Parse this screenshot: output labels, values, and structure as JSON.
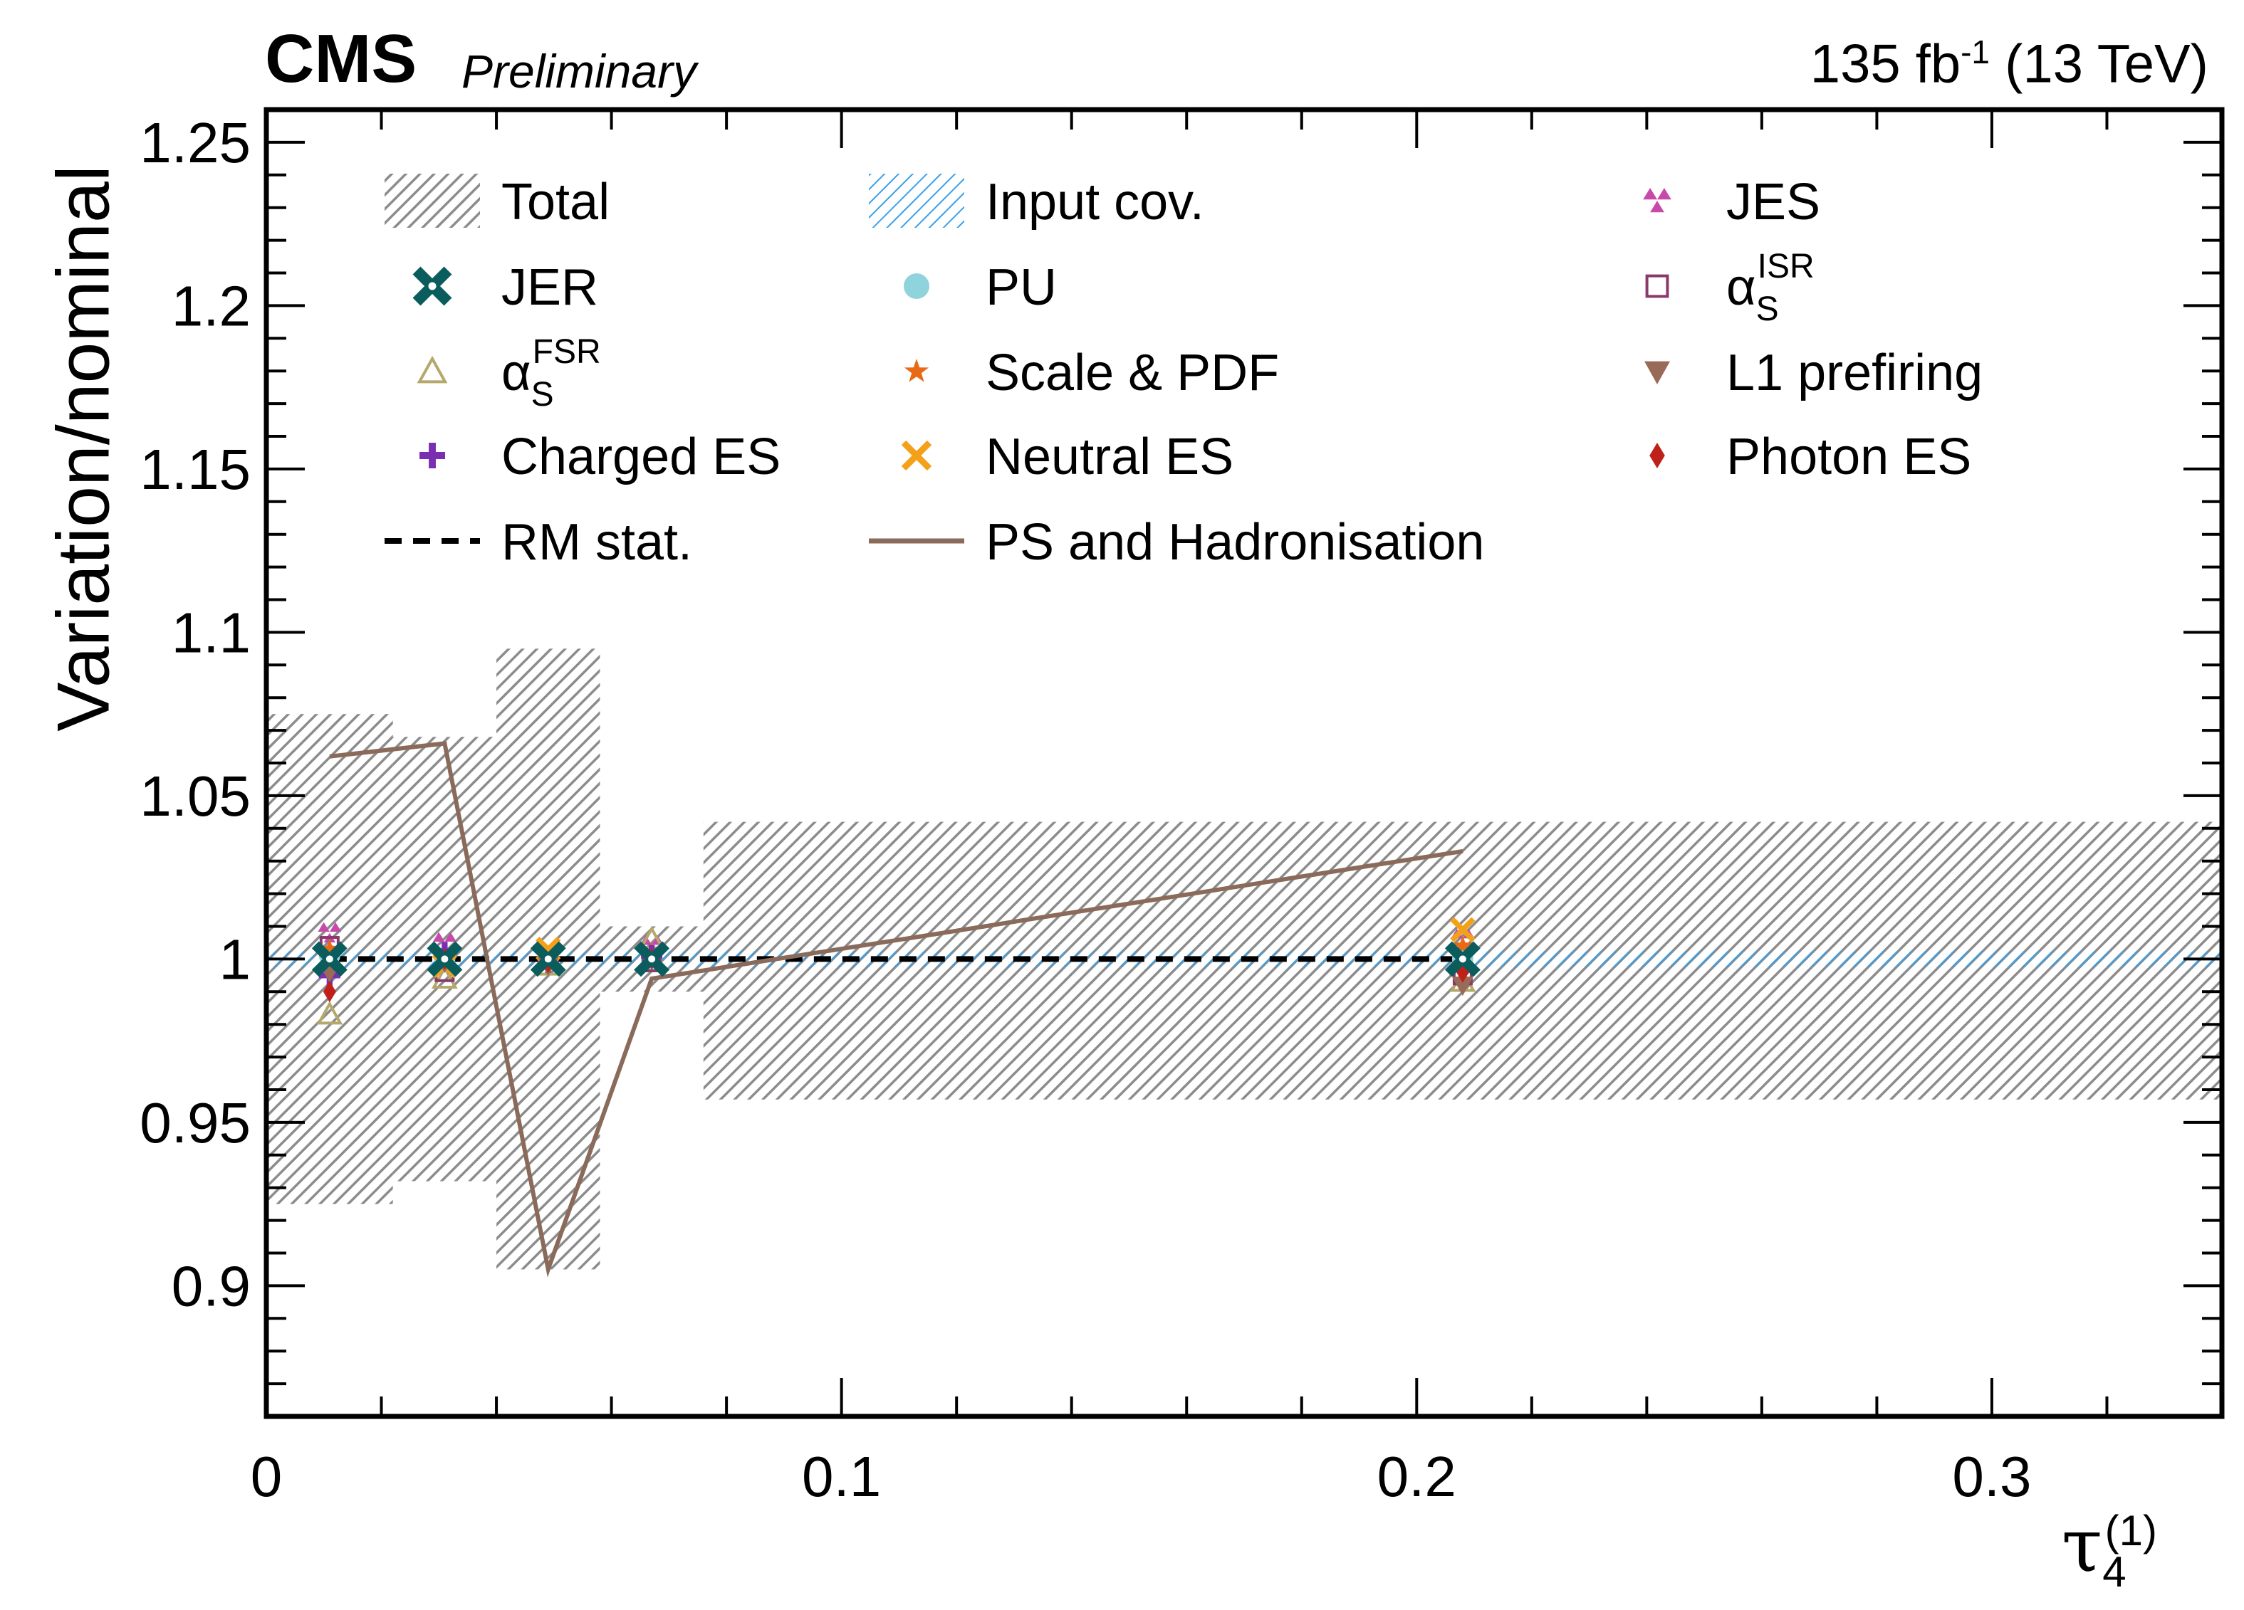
{
  "header": {
    "experiment": "CMS",
    "status": "Preliminary",
    "lumi": "135 fb",
    "lumi_exp": "-1",
    "energy": "(13 TeV)"
  },
  "colors": {
    "total": "#888888",
    "input_cov": "#3aa0e8",
    "jer": "#0b5d5d",
    "pu": "#8fd3dc",
    "jes": "#c84aa8",
    "alpha_fsr": "#b4a86a",
    "scale_pdf": "#e86a16",
    "alpha_isr": "#8a3a6a",
    "charged_es": "#7a2fb0",
    "neutral_es": "#f4a11a",
    "l1_prefiring": "#9a6a58",
    "photon_es": "#c0201a",
    "rm_stat": "#000000",
    "ps_hadronisation": "#8a6a5a"
  },
  "chart_data": {
    "type": "line",
    "xlabel": "τ",
    "xlabel_sub": "4",
    "xlabel_sup": "(1)",
    "ylabel": "Variation/nominal",
    "xlim": [
      0,
      0.34
    ],
    "ylim": [
      0.86,
      1.26
    ],
    "x_ticks": [
      0,
      0.1,
      0.2,
      0.3
    ],
    "x_tick_labels": [
      "0",
      "0.1",
      "0.2",
      "0.3"
    ],
    "y_ticks": [
      0.9,
      0.95,
      1,
      1.05,
      1.1,
      1.15,
      1.2,
      1.25
    ],
    "y_tick_labels": [
      "0.9",
      "0.95",
      "1",
      "1.05",
      "1.1",
      "1.15",
      "1.2",
      "1.25"
    ],
    "bin_edges": [
      0,
      0.022,
      0.04,
      0.058,
      0.076,
      0.34
    ],
    "bin_centers": [
      0.011,
      0.031,
      0.049,
      0.067,
      0.208
    ],
    "total_band": {
      "low": [
        0.925,
        0.932,
        0.905,
        0.99,
        0.957
      ],
      "high": [
        1.075,
        1.068,
        1.095,
        1.01,
        1.042
      ]
    },
    "input_cov_band": {
      "low": [
        0.998,
        0.998,
        0.998,
        0.998,
        0.998
      ],
      "high": [
        1.002,
        1.002,
        1.002,
        1.002,
        1.002
      ]
    },
    "rm_stat": [
      1.0,
      1.0,
      1.0,
      1.0,
      1.0
    ],
    "ps_hadronisation": [
      1.062,
      1.066,
      0.905,
      0.994,
      1.033
    ],
    "markers": [
      {
        "key": "jer",
        "values": [
          1.0,
          1.0,
          1.0,
          1.0,
          1.0
        ]
      },
      {
        "key": "pu",
        "values": [
          1.001,
          1.0,
          1.0,
          1.0,
          1.0
        ]
      },
      {
        "key": "jes",
        "values": [
          1.008,
          1.005,
          1.002,
          1.004,
          1.006
        ]
      },
      {
        "key": "alpha_fsr",
        "values": [
          0.983,
          0.994,
          0.998,
          1.006,
          0.993
        ]
      },
      {
        "key": "scale_pdf",
        "values": [
          1.003,
          1.002,
          1.001,
          1.002,
          1.004
        ]
      },
      {
        "key": "alpha_isr",
        "values": [
          1.004,
          0.996,
          1.0,
          0.999,
          0.995
        ]
      },
      {
        "key": "charged_es",
        "values": [
          0.995,
          1.002,
          0.999,
          1.001,
          0.997
        ]
      },
      {
        "key": "neutral_es",
        "values": [
          1.0,
          0.998,
          1.003,
          1.0,
          1.009
        ]
      },
      {
        "key": "l1_prefiring",
        "values": [
          0.996,
          0.999,
          0.998,
          1.0,
          0.992
        ]
      },
      {
        "key": "photon_es",
        "values": [
          0.99,
          1.0,
          0.999,
          1.0,
          0.996
        ]
      }
    ],
    "legend_placement": "top",
    "legend": [
      {
        "key": "total",
        "label": "Total",
        "sym": "hatch-gray"
      },
      {
        "key": "input_cov",
        "label": "Input cov.",
        "sym": "hatch-blue"
      },
      {
        "key": "jes",
        "label": "JES",
        "sym": "tri-up-pair"
      },
      {
        "key": "jer",
        "label": "JER",
        "sym": "x-thick"
      },
      {
        "key": "pu",
        "label": "PU",
        "sym": "circle"
      },
      {
        "key": "alpha_isr",
        "label": "α",
        "sub": "S",
        "sup": "ISR",
        "sym": "square-open"
      },
      {
        "key": "alpha_fsr",
        "label": "α",
        "sub": "S",
        "sup": "FSR",
        "sym": "tri-open"
      },
      {
        "key": "scale_pdf",
        "label": "Scale & PDF",
        "sym": "star"
      },
      {
        "key": "l1_prefiring",
        "label": "L1 prefiring",
        "sym": "tri-down"
      },
      {
        "key": "charged_es",
        "label": "Charged ES",
        "sym": "plus"
      },
      {
        "key": "neutral_es",
        "label": "Neutral ES",
        "sym": "x"
      },
      {
        "key": "photon_es",
        "label": "Photon ES",
        "sym": "diamond"
      },
      {
        "key": "rm_stat",
        "label": "RM stat.",
        "sym": "dash"
      },
      {
        "key": "ps_hadronisation",
        "label": "PS and Hadronisation",
        "sym": "line"
      }
    ]
  }
}
